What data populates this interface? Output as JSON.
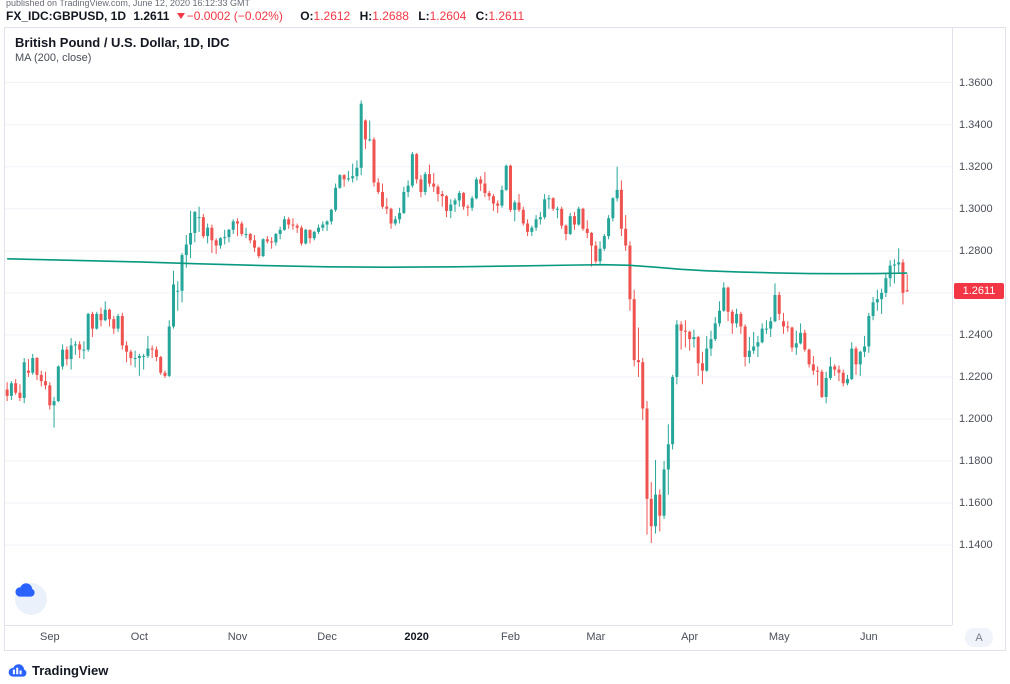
{
  "header": {
    "published_line": "published on TradingView.com, June 12, 2020 16:12:33 GMT",
    "symbol": "FX_IDC:GBPUSD, 1D",
    "price": "1.2611",
    "arrow": "▼",
    "change": "−0.0002 (−0.02%)",
    "o_label": "O:",
    "o": "1.2612",
    "h_label": "H:",
    "h": "1.2688",
    "l_label": "L:",
    "l": "1.2604",
    "c_label": "C:",
    "c": "1.2611"
  },
  "legend": {
    "title": "British Pound / U.S. Dollar, 1D, IDC",
    "ma_label": "MA (200, close)"
  },
  "price_badge": "1.2611",
  "axis_button_label": "A",
  "footer": {
    "brand": "TradingView"
  },
  "colors": {
    "up": "#26a69a",
    "down": "#ef5350",
    "ma": "#089981",
    "red": "#f23645",
    "grid": "#f0f3fa",
    "border": "#e0e3eb",
    "blue": "#2962ff",
    "text": "#131722",
    "muted": "#787b86"
  },
  "chart_data": {
    "type": "candlestick",
    "title": "British Pound / U.S. Dollar, 1D, IDC",
    "overlay": "MA (200, close)",
    "xlabel": "",
    "ylabel": "",
    "ylim": [
      1.102,
      1.386
    ],
    "grid": true,
    "last_price": 1.2611,
    "total_slots": 222,
    "y_ticks": [
      "1.3600",
      "1.3400",
      "1.3200",
      "1.3000",
      "1.2800",
      "1.2600",
      "1.2400",
      "1.2200",
      "1.2000",
      "1.1800",
      "1.1600",
      "1.1400"
    ],
    "x_ticks": [
      {
        "label": "Sep",
        "index": 10,
        "strong": false
      },
      {
        "label": "Oct",
        "index": 31,
        "strong": false
      },
      {
        "label": "Nov",
        "index": 54,
        "strong": false
      },
      {
        "label": "Dec",
        "index": 75,
        "strong": false
      },
      {
        "label": "2020",
        "index": 96,
        "strong": true
      },
      {
        "label": "Feb",
        "index": 118,
        "strong": false
      },
      {
        "label": "Mar",
        "index": 138,
        "strong": false
      },
      {
        "label": "Apr",
        "index": 160,
        "strong": false
      },
      {
        "label": "May",
        "index": 181,
        "strong": false
      },
      {
        "label": "Jun",
        "index": 202,
        "strong": false
      }
    ],
    "ma200": {
      "label": "MA (200, close)",
      "anchors": [
        [
          0,
          1.2762
        ],
        [
          15,
          1.2755
        ],
        [
          31,
          1.2747
        ],
        [
          45,
          1.2738
        ],
        [
          60,
          1.273
        ],
        [
          75,
          1.2724
        ],
        [
          90,
          1.2722
        ],
        [
          105,
          1.2724
        ],
        [
          120,
          1.2728
        ],
        [
          132,
          1.2732
        ],
        [
          140,
          1.2734
        ],
        [
          146,
          1.2731
        ],
        [
          152,
          1.2722
        ],
        [
          158,
          1.2712
        ],
        [
          164,
          1.2705
        ],
        [
          172,
          1.2699
        ],
        [
          180,
          1.2695
        ],
        [
          188,
          1.2692
        ],
        [
          196,
          1.2691
        ],
        [
          204,
          1.2692
        ],
        [
          211,
          1.2694
        ]
      ]
    },
    "candles": [
      [
        1.214,
        1.2175,
        1.2085,
        1.211
      ],
      [
        1.211,
        1.218,
        1.209,
        1.217
      ],
      [
        1.217,
        1.219,
        1.2115,
        1.2125
      ],
      [
        1.2125,
        1.2165,
        1.2085,
        1.21
      ],
      [
        1.21,
        1.229,
        1.2075,
        1.227
      ],
      [
        1.223,
        1.2285,
        1.22,
        1.222
      ],
      [
        1.222,
        1.231,
        1.221,
        1.229
      ],
      [
        1.229,
        1.2295,
        1.2185,
        1.221
      ],
      [
        1.221,
        1.223,
        1.2155,
        1.218
      ],
      [
        1.218,
        1.2225,
        1.214,
        1.216
      ],
      [
        1.216,
        1.2175,
        1.2045,
        1.2065
      ],
      [
        1.2065,
        1.2105,
        1.1959,
        1.2085
      ],
      [
        1.2085,
        1.2255,
        1.208,
        1.225
      ],
      [
        1.225,
        1.2355,
        1.2235,
        1.233
      ],
      [
        1.233,
        1.2345,
        1.2255,
        1.2285
      ],
      [
        1.2285,
        1.2385,
        1.2235,
        1.235
      ],
      [
        1.235,
        1.237,
        1.2305,
        1.2355
      ],
      [
        1.2355,
        1.237,
        1.229,
        1.233
      ],
      [
        1.233,
        1.237,
        1.2285,
        1.233
      ],
      [
        1.233,
        1.2505,
        1.232,
        1.25
      ],
      [
        1.25,
        1.251,
        1.239,
        1.243
      ],
      [
        1.243,
        1.251,
        1.2425,
        1.25
      ],
      [
        1.25,
        1.253,
        1.244,
        1.247
      ],
      [
        1.247,
        1.256,
        1.2465,
        1.252
      ],
      [
        1.252,
        1.2525,
        1.244,
        1.2475
      ],
      [
        1.2475,
        1.249,
        1.2405,
        1.243
      ],
      [
        1.243,
        1.25,
        1.2415,
        1.249
      ],
      [
        1.249,
        1.2505,
        1.233,
        1.235
      ],
      [
        1.235,
        1.237,
        1.227,
        1.232
      ],
      [
        1.232,
        1.233,
        1.2255,
        1.229
      ],
      [
        1.229,
        1.2325,
        1.2245,
        1.229
      ],
      [
        1.229,
        1.231,
        1.2205,
        1.23
      ],
      [
        1.23,
        1.231,
        1.2235,
        1.23
      ],
      [
        1.23,
        1.2395,
        1.229,
        1.2335
      ],
      [
        1.2335,
        1.235,
        1.229,
        1.233
      ],
      [
        1.233,
        1.2345,
        1.2275,
        1.2295
      ],
      [
        1.2295,
        1.23,
        1.221,
        1.222
      ],
      [
        1.222,
        1.223,
        1.2195,
        1.2205
      ],
      [
        1.2205,
        1.247,
        1.22,
        1.244
      ],
      [
        1.244,
        1.2705,
        1.243,
        1.264
      ],
      [
        1.261,
        1.2655,
        1.2515,
        1.261
      ],
      [
        1.261,
        1.279,
        1.2555,
        1.278
      ],
      [
        1.278,
        1.2875,
        1.272,
        1.283
      ],
      [
        1.283,
        1.299,
        1.2765,
        1.2885
      ],
      [
        1.2885,
        1.299,
        1.284,
        1.2985
      ],
      [
        1.296,
        1.301,
        1.289,
        1.296
      ],
      [
        1.296,
        1.2975,
        1.286,
        1.287
      ],
      [
        1.287,
        1.293,
        1.2835,
        1.291
      ],
      [
        1.291,
        1.2925,
        1.279,
        1.285
      ],
      [
        1.285,
        1.286,
        1.2785,
        1.2825
      ],
      [
        1.2825,
        1.2865,
        1.281,
        1.286
      ],
      [
        1.286,
        1.29,
        1.283,
        1.2865
      ],
      [
        1.2865,
        1.2905,
        1.284,
        1.29
      ],
      [
        1.29,
        1.295,
        1.288,
        1.294
      ],
      [
        1.294,
        1.2955,
        1.287,
        1.293
      ],
      [
        1.293,
        1.294,
        1.287,
        1.288
      ],
      [
        1.288,
        1.291,
        1.286,
        1.288
      ],
      [
        1.288,
        1.2885,
        1.2835,
        1.285
      ],
      [
        1.285,
        1.2875,
        1.2795,
        1.2815
      ],
      [
        1.2815,
        1.282,
        1.2765,
        1.2775
      ],
      [
        1.2775,
        1.286,
        1.277,
        1.2855
      ],
      [
        1.2855,
        1.287,
        1.2835,
        1.2845
      ],
      [
        1.2845,
        1.2865,
        1.281,
        1.284
      ],
      [
        1.284,
        1.2885,
        1.2825,
        1.288
      ],
      [
        1.288,
        1.2915,
        1.2855,
        1.29
      ],
      [
        1.29,
        1.2965,
        1.2895,
        1.295
      ],
      [
        1.295,
        1.296,
        1.2905,
        1.2925
      ],
      [
        1.2925,
        1.2955,
        1.29,
        1.292
      ],
      [
        1.292,
        1.293,
        1.2885,
        1.291
      ],
      [
        1.291,
        1.292,
        1.2825,
        1.2835
      ],
      [
        1.2835,
        1.2905,
        1.283,
        1.29
      ],
      [
        1.29,
        1.29,
        1.2835,
        1.286
      ],
      [
        1.286,
        1.2895,
        1.285,
        1.289
      ],
      [
        1.289,
        1.2925,
        1.288,
        1.291
      ],
      [
        1.291,
        1.294,
        1.2895,
        1.2925
      ],
      [
        1.2925,
        1.2945,
        1.2895,
        1.294
      ],
      [
        1.294,
        1.3,
        1.2925,
        1.2995
      ],
      [
        1.2995,
        1.312,
        1.2985,
        1.31
      ],
      [
        1.31,
        1.3165,
        1.3095,
        1.316
      ],
      [
        1.316,
        1.3165,
        1.3105,
        1.314
      ],
      [
        1.314,
        1.318,
        1.313,
        1.3145
      ],
      [
        1.3145,
        1.3215,
        1.3125,
        1.3155
      ],
      [
        1.3155,
        1.323,
        1.3135,
        1.3195
      ],
      [
        1.3195,
        1.3515,
        1.316,
        1.35
      ],
      [
        1.342,
        1.3425,
        1.3285,
        1.333
      ],
      [
        1.333,
        1.342,
        1.332,
        1.333
      ],
      [
        1.333,
        1.334,
        1.3105,
        1.3125
      ],
      [
        1.3125,
        1.3145,
        1.307,
        1.308
      ],
      [
        1.308,
        1.312,
        1.3,
        1.301
      ],
      [
        1.301,
        1.305,
        1.2975,
        1.3
      ],
      [
        1.3,
        1.3005,
        1.2905,
        1.293
      ],
      [
        1.293,
        1.2965,
        1.292,
        1.295
      ],
      [
        1.295,
        1.3005,
        1.293,
        1.298
      ],
      [
        1.298,
        1.3105,
        1.2975,
        1.308
      ],
      [
        1.308,
        1.3135,
        1.3055,
        1.311
      ],
      [
        1.311,
        1.327,
        1.31,
        1.326
      ],
      [
        1.326,
        1.3265,
        1.312,
        1.314
      ],
      [
        1.314,
        1.316,
        1.3055,
        1.308
      ],
      [
        1.308,
        1.3175,
        1.3065,
        1.3165
      ],
      [
        1.3165,
        1.321,
        1.3105,
        1.312
      ],
      [
        1.312,
        1.317,
        1.308,
        1.3105
      ],
      [
        1.3105,
        1.3115,
        1.3035,
        1.307
      ],
      [
        1.307,
        1.3085,
        1.301,
        1.306
      ],
      [
        1.306,
        1.3065,
        1.296,
        1.299
      ],
      [
        1.299,
        1.3045,
        1.2955,
        1.302
      ],
      [
        1.302,
        1.305,
        1.2985,
        1.304
      ],
      [
        1.304,
        1.3085,
        1.301,
        1.3075
      ],
      [
        1.3075,
        1.308,
        1.2995,
        1.301
      ],
      [
        1.301,
        1.302,
        1.2965,
        1.3005
      ],
      [
        1.3005,
        1.306,
        1.299,
        1.305
      ],
      [
        1.305,
        1.315,
        1.3045,
        1.314
      ],
      [
        1.314,
        1.3155,
        1.3085,
        1.312
      ],
      [
        1.312,
        1.3175,
        1.3055,
        1.3075
      ],
      [
        1.3075,
        1.3085,
        1.304,
        1.306
      ],
      [
        1.306,
        1.307,
        1.299,
        1.3025
      ],
      [
        1.3025,
        1.304,
        1.298,
        1.3015
      ],
      [
        1.3015,
        1.311,
        1.3005,
        1.309
      ],
      [
        1.309,
        1.321,
        1.3085,
        1.3205
      ],
      [
        1.3205,
        1.321,
        1.2985,
        1.2995
      ],
      [
        1.2995,
        1.304,
        1.294,
        1.303
      ],
      [
        1.303,
        1.307,
        1.2985,
        1.2995
      ],
      [
        1.2995,
        1.301,
        1.292,
        1.293
      ],
      [
        1.293,
        1.295,
        1.287,
        1.289
      ],
      [
        1.289,
        1.292,
        1.287,
        1.291
      ],
      [
        1.291,
        1.297,
        1.2895,
        1.295
      ],
      [
        1.295,
        1.2985,
        1.2925,
        1.296
      ],
      [
        1.296,
        1.307,
        1.295,
        1.3045
      ],
      [
        1.3045,
        1.3065,
        1.3,
        1.305
      ],
      [
        1.305,
        1.3055,
        1.299,
        1.3
      ],
      [
        1.3,
        1.301,
        1.2955,
        1.3
      ],
      [
        1.3,
        1.301,
        1.2905,
        1.292
      ],
      [
        1.292,
        1.2925,
        1.285,
        1.288
      ],
      [
        1.288,
        1.298,
        1.2875,
        1.2965
      ],
      [
        1.2965,
        1.2985,
        1.29,
        1.2925
      ],
      [
        1.2925,
        1.301,
        1.292,
        1.3
      ],
      [
        1.3,
        1.3005,
        1.2895,
        1.2905
      ],
      [
        1.2905,
        1.2945,
        1.286,
        1.2885
      ],
      [
        1.2885,
        1.289,
        1.2725,
        1.2825
      ],
      [
        1.2825,
        1.2845,
        1.274,
        1.275
      ],
      [
        1.275,
        1.2845,
        1.2735,
        1.281
      ],
      [
        1.281,
        1.288,
        1.28,
        1.287
      ],
      [
        1.287,
        1.297,
        1.2855,
        1.2955
      ],
      [
        1.2955,
        1.3055,
        1.294,
        1.305
      ],
      [
        1.305,
        1.32,
        1.3035,
        1.309
      ],
      [
        1.309,
        1.3135,
        1.287,
        1.2905
      ],
      [
        1.2905,
        1.297,
        1.28,
        1.2825
      ],
      [
        1.2825,
        1.2845,
        1.2515,
        1.257
      ],
      [
        1.257,
        1.2615,
        1.225,
        1.228
      ],
      [
        1.228,
        1.2435,
        1.22,
        1.227
      ],
      [
        1.227,
        1.229,
        1.1995,
        1.205
      ],
      [
        1.205,
        1.2085,
        1.145,
        1.162
      ],
      [
        1.162,
        1.17,
        1.141,
        1.149
      ],
      [
        1.149,
        1.1805,
        1.1455,
        1.164
      ],
      [
        1.164,
        1.1665,
        1.1465,
        1.154
      ],
      [
        1.154,
        1.18,
        1.1525,
        1.176
      ],
      [
        1.176,
        1.1975,
        1.164,
        1.188
      ],
      [
        1.188,
        1.221,
        1.1855,
        1.22
      ],
      [
        1.22,
        1.247,
        1.2165,
        1.245
      ],
      [
        1.245,
        1.2465,
        1.233,
        1.242
      ],
      [
        1.242,
        1.247,
        1.234,
        1.2415
      ],
      [
        1.2415,
        1.242,
        1.2325,
        1.238
      ],
      [
        1.238,
        1.2425,
        1.234,
        1.239
      ],
      [
        1.239,
        1.2395,
        1.2205,
        1.2265
      ],
      [
        1.2265,
        1.232,
        1.2165,
        1.223
      ],
      [
        1.223,
        1.2395,
        1.2225,
        1.2335
      ],
      [
        1.2335,
        1.242,
        1.23,
        1.238
      ],
      [
        1.238,
        1.2485,
        1.237,
        1.2455
      ],
      [
        1.2455,
        1.256,
        1.244,
        1.2515
      ],
      [
        1.2515,
        1.265,
        1.251,
        1.2625
      ],
      [
        1.2625,
        1.263,
        1.2465,
        1.251
      ],
      [
        1.251,
        1.252,
        1.2405,
        1.2455
      ],
      [
        1.2455,
        1.2525,
        1.2435,
        1.25
      ],
      [
        1.25,
        1.251,
        1.2405,
        1.244
      ],
      [
        1.244,
        1.245,
        1.225,
        1.2295
      ],
      [
        1.2295,
        1.239,
        1.2265,
        1.2325
      ],
      [
        1.2325,
        1.2415,
        1.231,
        1.2345
      ],
      [
        1.2345,
        1.2395,
        1.2295,
        1.2365
      ],
      [
        1.2365,
        1.2455,
        1.236,
        1.243
      ],
      [
        1.243,
        1.247,
        1.2405,
        1.243
      ],
      [
        1.243,
        1.2485,
        1.239,
        1.2465
      ],
      [
        1.2465,
        1.2645,
        1.246,
        1.259
      ],
      [
        1.259,
        1.2605,
        1.247,
        1.25
      ],
      [
        1.2465,
        1.2505,
        1.2405,
        1.244
      ],
      [
        1.244,
        1.2465,
        1.2415,
        1.2435
      ],
      [
        1.2435,
        1.244,
        1.232,
        1.234
      ],
      [
        1.234,
        1.242,
        1.2305,
        1.236
      ],
      [
        1.236,
        1.2455,
        1.2355,
        1.241
      ],
      [
        1.241,
        1.2425,
        1.232,
        1.233
      ],
      [
        1.233,
        1.2335,
        1.2245,
        1.226
      ],
      [
        1.226,
        1.23,
        1.221,
        1.223
      ],
      [
        1.223,
        1.225,
        1.216,
        1.2225
      ],
      [
        1.2225,
        1.2235,
        1.21,
        1.2105
      ],
      [
        1.2105,
        1.2225,
        1.2075,
        1.2195
      ],
      [
        1.2195,
        1.2295,
        1.2185,
        1.225
      ],
      [
        1.225,
        1.226,
        1.2205,
        1.2235
      ],
      [
        1.2235,
        1.2255,
        1.218,
        1.222
      ],
      [
        1.222,
        1.2235,
        1.2155,
        1.217
      ],
      [
        1.217,
        1.221,
        1.216,
        1.219
      ],
      [
        1.219,
        1.2365,
        1.2185,
        1.2335
      ],
      [
        1.2335,
        1.2345,
        1.221,
        1.226
      ],
      [
        1.226,
        1.2325,
        1.2205,
        1.232
      ],
      [
        1.232,
        1.2395,
        1.2295,
        1.2345
      ],
      [
        1.2345,
        1.2505,
        1.2315,
        1.249
      ],
      [
        1.249,
        1.258,
        1.247,
        1.2555
      ],
      [
        1.2555,
        1.2615,
        1.2515,
        1.257
      ],
      [
        1.257,
        1.262,
        1.25,
        1.26
      ],
      [
        1.26,
        1.269,
        1.258,
        1.267
      ],
      [
        1.267,
        1.2755,
        1.263,
        1.273
      ],
      [
        1.273,
        1.276,
        1.2645,
        1.2735
      ],
      [
        1.2735,
        1.2812,
        1.269,
        1.2745
      ],
      [
        1.2745,
        1.276,
        1.2545,
        1.26
      ],
      [
        1.2612,
        1.2688,
        1.2604,
        1.2611
      ]
    ]
  }
}
